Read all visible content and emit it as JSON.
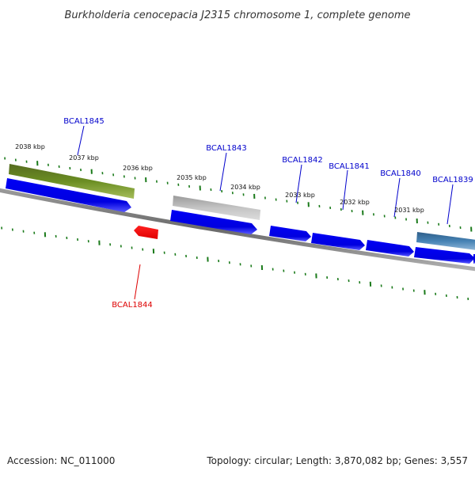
{
  "title": "Burkholderia cenocepacia J2315 chromosome 1, complete genome",
  "footer": {
    "accession": "Accession: NC_011000",
    "summary": "Topology: circular; Length: 3,870,082 bp; Genes: 3,557"
  },
  "scale_labels": [
    "2038 kbp",
    "2037 kbp",
    "2036 kbp",
    "2035 kbp",
    "2034 kbp",
    "2033 kbp",
    "2032 kbp",
    "2031 kbp"
  ],
  "genes": [
    {
      "name": "BCAL1845",
      "strand": "forward",
      "color": "#0000cc"
    },
    {
      "name": "BCAL1844",
      "strand": "reverse",
      "color": "#dd0000"
    },
    {
      "name": "BCAL1843",
      "strand": "forward",
      "color": "#0000cc"
    },
    {
      "name": "BCAL1842",
      "strand": "forward",
      "color": "#0000cc"
    },
    {
      "name": "BCAL1841",
      "strand": "forward",
      "color": "#0000cc"
    },
    {
      "name": "BCAL1840",
      "strand": "forward",
      "color": "#0000cc"
    },
    {
      "name": "BCAL1839",
      "strand": "forward",
      "color": "#0000cc"
    }
  ],
  "colors": {
    "forward_gene": "#0000ee",
    "reverse_gene": "#ee0000",
    "backbone": "#808080",
    "tick": "#1a7a1a",
    "feature_green": "#6b8e23",
    "feature_grey": "#b8b8b8",
    "feature_steel": "#4682b4"
  }
}
